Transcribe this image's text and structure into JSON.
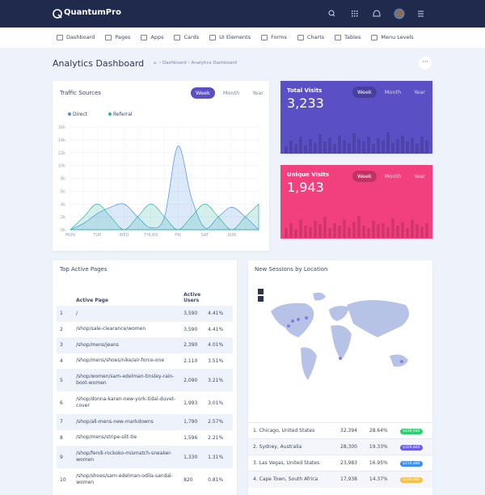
{
  "header": {
    "brand": "QuantumPro"
  },
  "nav": [
    "Dashboard",
    "Pages",
    "Apps",
    "Cards",
    "UI Elements",
    "Forms",
    "Charts",
    "Tables",
    "Menu Levels"
  ],
  "page": {
    "title": "Analytics Dashboard",
    "breadcrumb": [
      "Dashboard",
      "Analytics Dashboard"
    ]
  },
  "traffic": {
    "title": "Traffic Sources",
    "tabs": [
      "Week",
      "Month",
      "Year"
    ],
    "chart_data": {
      "type": "area",
      "categories": [
        "MON",
        null,
        "TUE",
        null,
        "WED",
        null,
        "THURS",
        null,
        "FRI",
        null,
        "SAT",
        null,
        "SUN",
        null,
        null
      ],
      "series": [
        {
          "name": "Direct",
          "color": "#4a90e2",
          "values": [
            0,
            1000,
            2500,
            3500,
            4000,
            2000,
            300,
            2000,
            13000,
            5000,
            300,
            2000,
            3500,
            2000,
            0
          ]
        },
        {
          "name": "Referral",
          "color": "#2bb5a0",
          "values": [
            0,
            2000,
            4000,
            2000,
            0,
            2000,
            4000,
            2000,
            0,
            2000,
            4000,
            2000,
            0,
            2000,
            4000
          ]
        }
      ],
      "ylim": [
        0,
        16000
      ],
      "yticks": [
        {
          "value": 0,
          "label": "0k"
        },
        {
          "value": 2000,
          "label": "2k"
        },
        {
          "value": 4000,
          "label": "4k"
        },
        {
          "value": 6000,
          "label": "6k"
        },
        {
          "value": 8000,
          "label": "8k"
        },
        {
          "value": 10000,
          "label": "10k"
        },
        {
          "value": 12000,
          "label": "12k"
        },
        {
          "value": 14000,
          "label": "14k"
        },
        {
          "value": 16000,
          "label": "16k"
        }
      ],
      "grid": true
    }
  },
  "total": {
    "title": "Total Visits",
    "value": "3,233",
    "tabs": [
      "Week",
      "Month",
      "Year"
    ],
    "color": "#5a4fc4",
    "bars": [
      30,
      55,
      40,
      70,
      35,
      60,
      45,
      80,
      50,
      65,
      40,
      75,
      55,
      45,
      85,
      60,
      50,
      70,
      40,
      65,
      55,
      90,
      45,
      60,
      75,
      50,
      65,
      40,
      70,
      55
    ]
  },
  "unique": {
    "title": "Unique Visits",
    "value": "1,943",
    "tabs": [
      "Week",
      "Month",
      "Year"
    ],
    "color": "#f23f7d",
    "bars": [
      40,
      60,
      35,
      75,
      50,
      45,
      70,
      55,
      85,
      40,
      60,
      50,
      75,
      45,
      65,
      90,
      50,
      40,
      70,
      55,
      60,
      45,
      80,
      50,
      65,
      40,
      75,
      55,
      45,
      60
    ]
  },
  "pages": {
    "title": "Top Active Pages",
    "columns": [
      "Active Page",
      "Active Users"
    ],
    "rows": [
      [
        "1",
        "/",
        "3,590",
        "4.41%"
      ],
      [
        "2",
        "/shop/sale-clearance/women",
        "3,590",
        "4.41%"
      ],
      [
        "3",
        "/shop/mens/jeans",
        "2,390",
        "4.01%"
      ],
      [
        "4",
        "/shop/mens/shoes/nike/air-force-one",
        "2,110",
        "3.51%"
      ],
      [
        "5",
        "/shop/women/sam-edelman-tinsley-rain-boot-women",
        "2,090",
        "3.21%"
      ],
      [
        "6",
        "/shop/donna-karan-new-york-tidal-duvet-cover",
        "1,993",
        "3.01%"
      ],
      [
        "7",
        "/shop/all-mens-new-markdowns",
        "1,790",
        "2.57%"
      ],
      [
        "8",
        "/shop/mens/stripe-slit-tie",
        "1,596",
        "2.21%"
      ],
      [
        "9",
        "/shop/fendi-rockoko-mismatch-sneaker-women",
        "1,330",
        "1.31%"
      ],
      [
        "10",
        "/shop/shoes/sam-edelman-odila-sandal-women",
        "820",
        "0.81%"
      ]
    ]
  },
  "sessions": {
    "title": "New Sessions by Location",
    "rows": [
      [
        "1. Chicago, United States",
        "32,394",
        "28.64%",
        "$439,940"
      ],
      [
        "2. Sydney, Australia",
        "28,300",
        "19.33%",
        "$329,840"
      ],
      [
        "3. Las Vegas, United States",
        "23,983",
        "16.95%",
        "$210,480"
      ],
      [
        "4. Cape Town, South Africa",
        "17,938",
        "14.37%",
        "$129,680"
      ]
    ],
    "badge_colors": [
      "#2ecc71",
      "#6c5ce7",
      "#3b8fe8",
      "#f5c04a"
    ]
  }
}
